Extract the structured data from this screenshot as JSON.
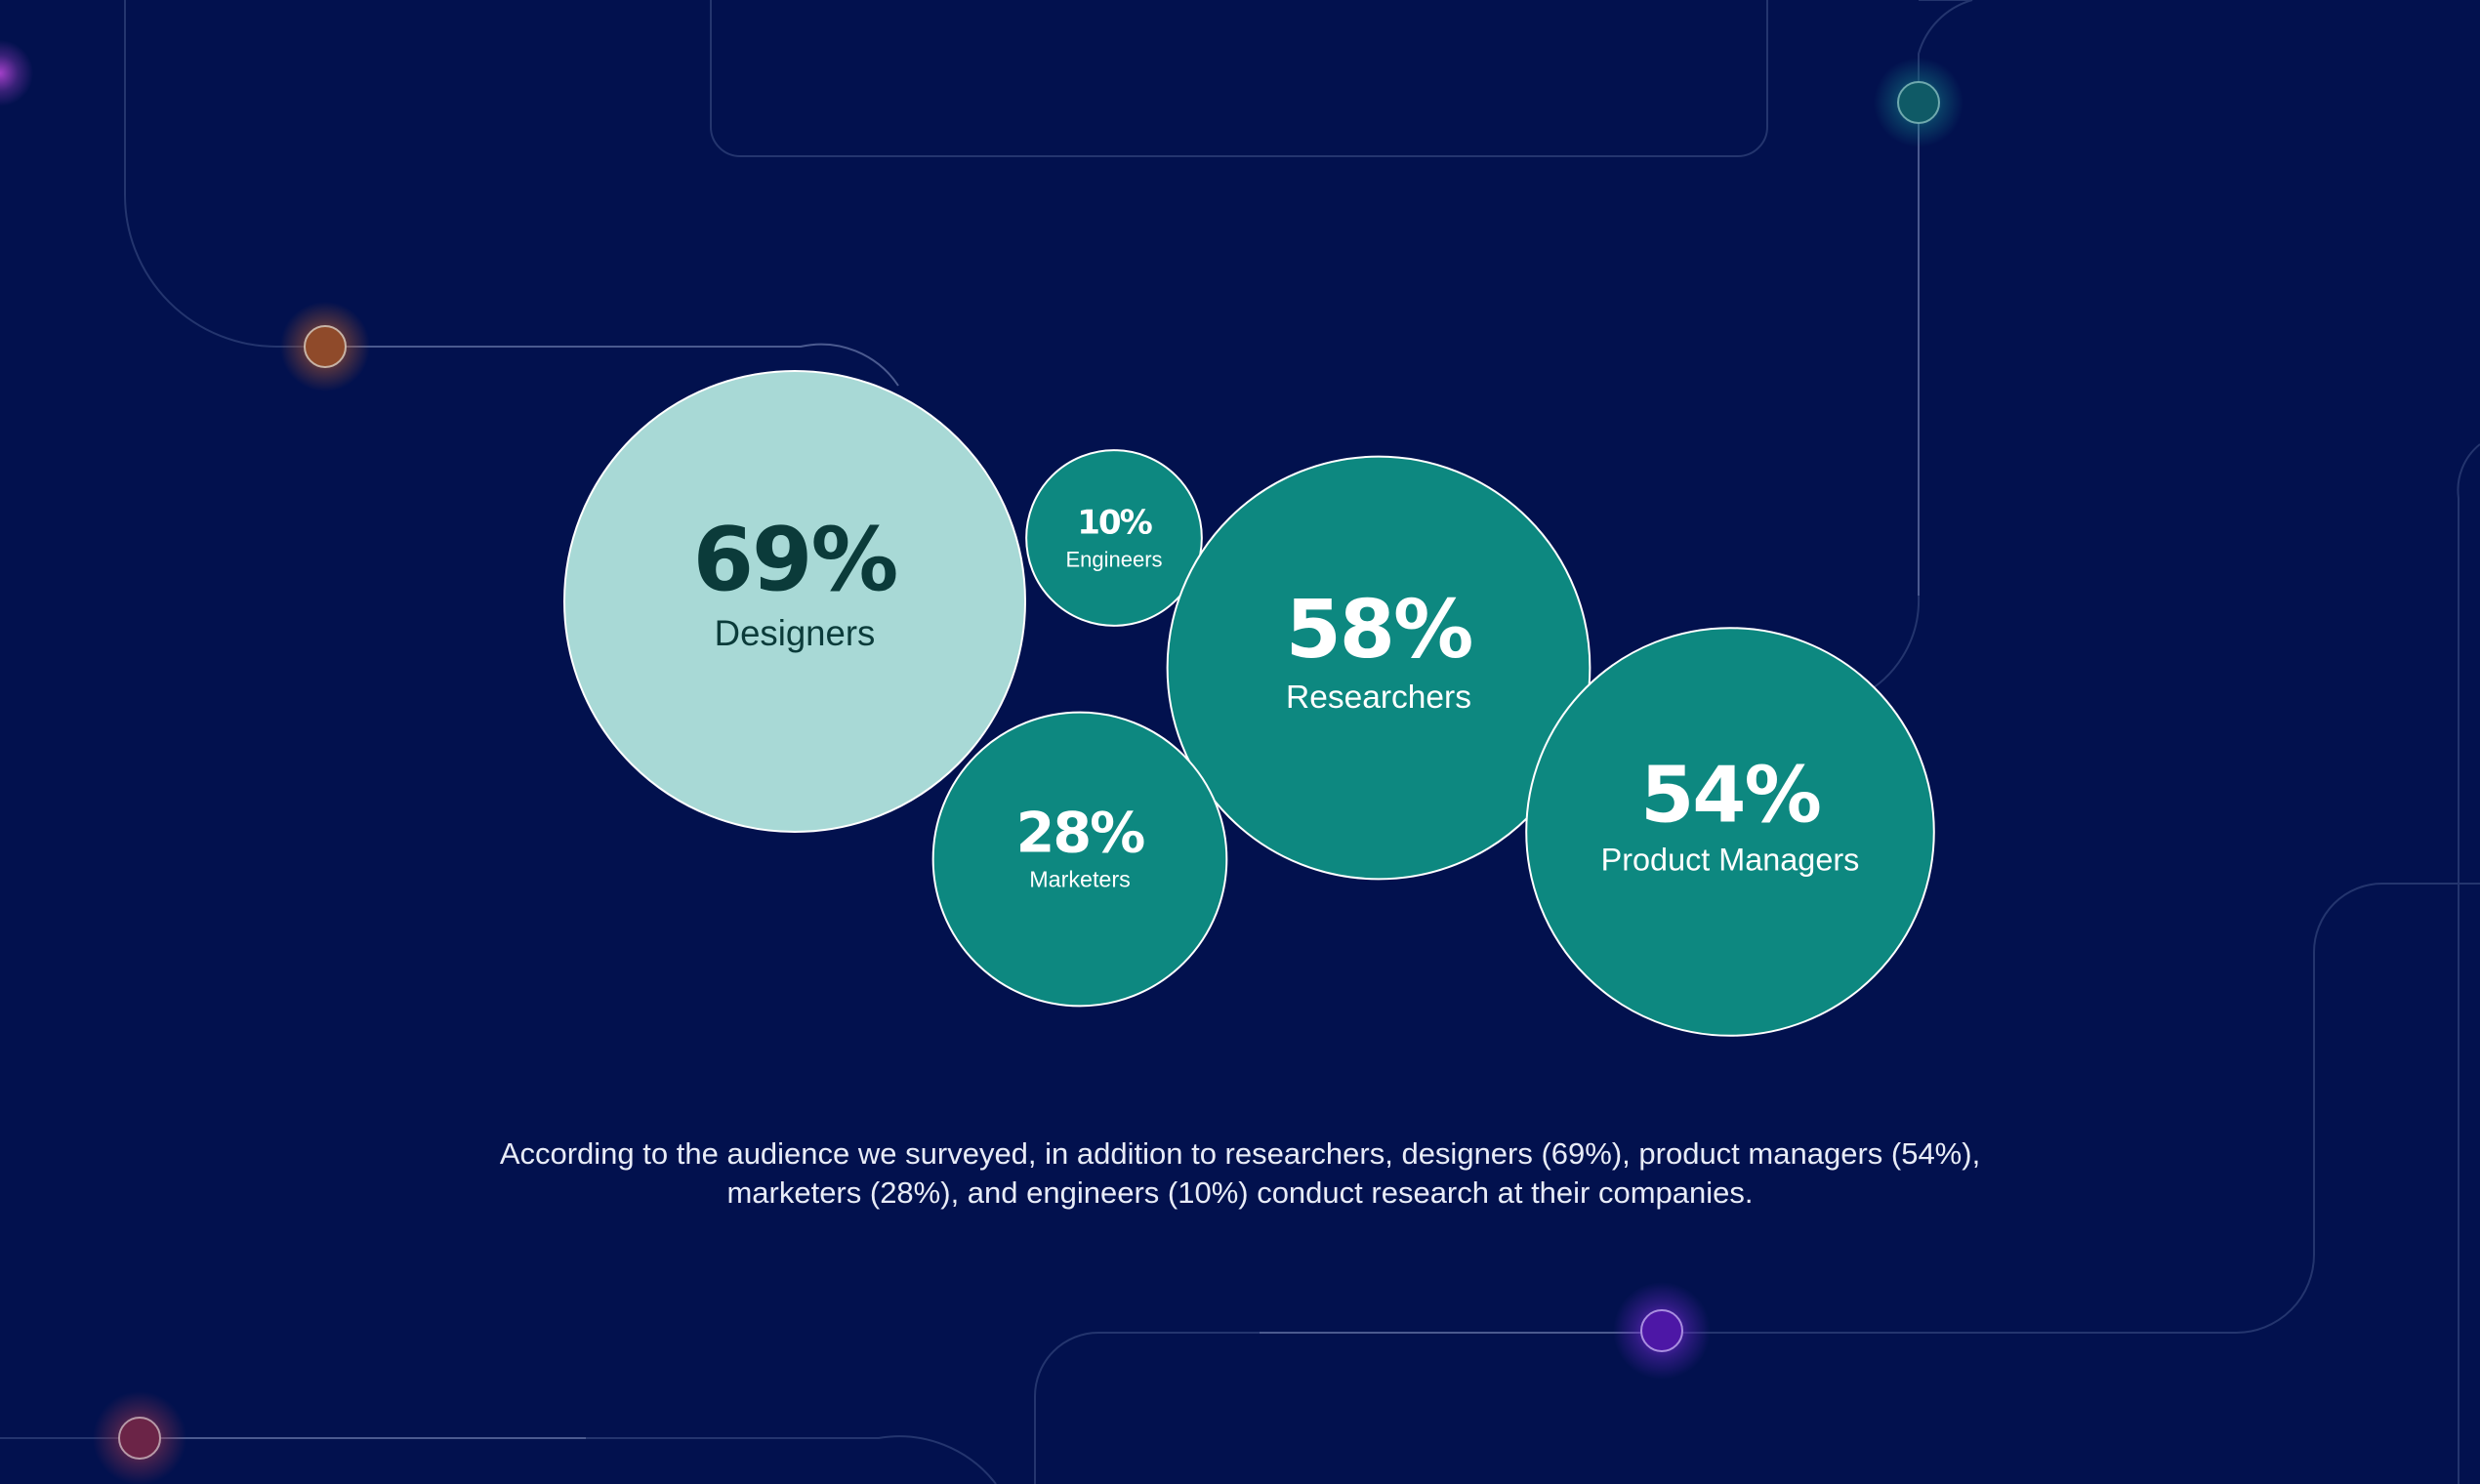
{
  "chart_data": {
    "type": "bubble",
    "title": "",
    "points": [
      {
        "value": 69,
        "label": "69%",
        "name": "Designers",
        "fill": "#a8d9d6",
        "text_color": "#0b3b3a"
      },
      {
        "value": 10,
        "label": "10%",
        "name": "Engineers",
        "fill": "#0d8880",
        "text_color": "#ffffff"
      },
      {
        "value": 58,
        "label": "58%",
        "name": "Researchers",
        "fill": "#0d8880",
        "text_color": "#ffffff"
      },
      {
        "value": 28,
        "label": "28%",
        "name": "Marketers",
        "fill": "#0d8880",
        "text_color": "#ffffff"
      },
      {
        "value": 54,
        "label": "54%",
        "name": "Product Managers",
        "fill": "#0d8880",
        "text_color": "#ffffff"
      }
    ]
  },
  "caption": {
    "line1": "According to the audience we surveyed, in addition to researchers, designers (69%), product managers (54%),",
    "line2": "marketers (28%), and engineers (10%) conduct research at their companies."
  },
  "colors": {
    "background": "#02114e",
    "decor_line": "#2a3a72",
    "node_orange": "#b4562a",
    "node_teal": "#0f6b72",
    "node_purple": "#6a22c8",
    "node_red": "#8a2e55",
    "node_magenta": "#a23cc8"
  }
}
